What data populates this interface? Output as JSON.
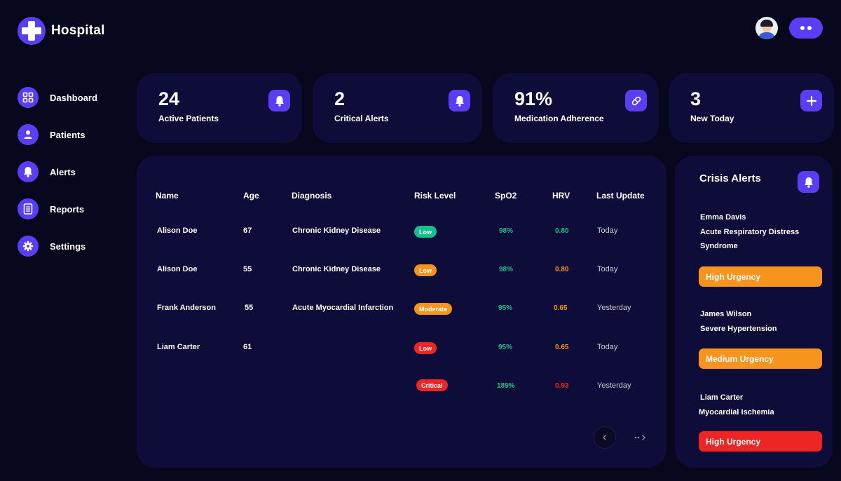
{
  "app": {
    "title": "Hospital"
  },
  "header": {
    "more_icon": "more-dots-icon",
    "avatar_icon": "doctor-avatar"
  },
  "sidebar": {
    "items": [
      {
        "label": "Dashboard",
        "icon": "grid-icon"
      },
      {
        "label": "Patients",
        "icon": "user-icon"
      },
      {
        "label": "Alerts",
        "icon": "bell-icon"
      },
      {
        "label": "Reports",
        "icon": "document-icon"
      },
      {
        "label": "Settings",
        "icon": "gear-icon"
      }
    ]
  },
  "stats": [
    {
      "value": "24",
      "label": "Active Patients",
      "icon": "bell-icon"
    },
    {
      "value": "2",
      "label": "Critical Alerts",
      "icon": "bell-icon"
    },
    {
      "value": "91%",
      "label": "Medication Adherence",
      "icon": "pill-icon"
    },
    {
      "value": "3",
      "label": "New Today",
      "icon": "plus-icon"
    }
  ],
  "table": {
    "columns": [
      "Name",
      "Age",
      "Diagnosis",
      "Risk Level",
      "SpO2",
      "HRV",
      "Last Update"
    ],
    "rows": [
      {
        "name": "Alison Doe",
        "age": "67",
        "diagnosis": "Chronic Kidney Disease",
        "risk": "Low",
        "spo2": "98%",
        "hrv": "0.80",
        "update": "Today"
      },
      {
        "name": "Alison Doe",
        "age": "55",
        "diagnosis": "Chronic Kidney Disease",
        "risk": "Low",
        "spo2": "98%",
        "hrv": "0.80",
        "update": "Today"
      },
      {
        "name": "Frank Anderson",
        "age": "55",
        "diagnosis": "Acute Myocardial Infarction",
        "risk": "Moderate",
        "spo2": "95%",
        "hrv": "0.65",
        "update": "Yesterday"
      },
      {
        "name": "Liam Carter",
        "age": "61",
        "diagnosis": "",
        "risk": "Low",
        "spo2": "95%",
        "hrv": "0.65",
        "update": "Today"
      },
      {
        "name": "",
        "age": "",
        "diagnosis": "",
        "risk": "Critical",
        "spo2": "189%",
        "hrv": "0.93",
        "update": "Yesterday"
      }
    ]
  },
  "colors": {
    "accent": "#5b3df5",
    "card": "#0e0c38",
    "background": "#07071d",
    "green": "#13c08e",
    "orange": "#f7941d",
    "red": "#ef2424"
  },
  "crisis": {
    "title": "Crisis Alerts",
    "alerts": [
      {
        "name": "Emma Davis",
        "condition": "Acute Respiratory Distress Syndrome",
        "urgency": "High Urgency"
      },
      {
        "name": "James Wilson",
        "condition": "Severe Hypertension",
        "urgency": "Medium Urgency"
      },
      {
        "name": "Liam Carter",
        "condition": "Myocardial Ischemia",
        "urgency": "High Urgency"
      }
    ]
  }
}
